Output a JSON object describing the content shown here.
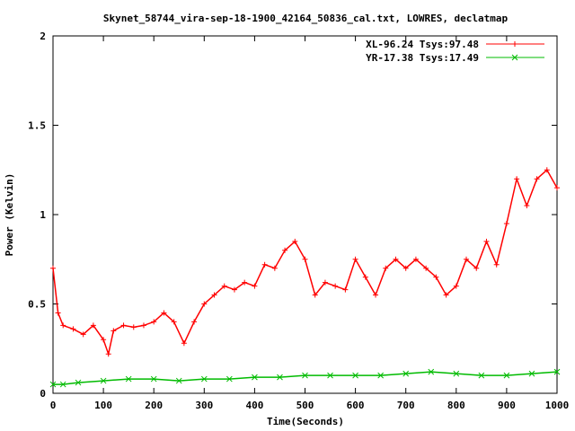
{
  "chart_data": {
    "type": "scatter",
    "title": "Skynet_58744_vira-sep-18-1900_42164_50836_cal.txt, LOWRES, declatmap",
    "xlabel": "Time(Seconds)",
    "ylabel": "Power (Kelvin)",
    "xlim": [
      0,
      1000
    ],
    "ylim": [
      0,
      2
    ],
    "xticks": [
      0,
      100,
      200,
      300,
      400,
      500,
      600,
      700,
      800,
      900,
      1000
    ],
    "yticks": [
      0,
      0.5,
      1,
      1.5,
      2
    ],
    "ytick_labels": [
      "0",
      "0.5",
      "1",
      "1.5",
      "2"
    ],
    "grid": false,
    "legend_position": "top-right",
    "series": [
      {
        "name": "XL-96.24 Tsys:97.48",
        "color": "#ff0000",
        "marker": "plus",
        "x": [
          0,
          10,
          20,
          40,
          60,
          80,
          100,
          110,
          120,
          140,
          160,
          180,
          200,
          220,
          240,
          260,
          280,
          300,
          320,
          340,
          360,
          380,
          400,
          420,
          440,
          460,
          480,
          500,
          520,
          540,
          560,
          580,
          600,
          620,
          640,
          660,
          680,
          700,
          720,
          740,
          760,
          780,
          800,
          820,
          840,
          860,
          880,
          900,
          920,
          940,
          960,
          980,
          1000
        ],
        "y": [
          0.7,
          0.45,
          0.38,
          0.36,
          0.33,
          0.38,
          0.3,
          0.22,
          0.35,
          0.38,
          0.37,
          0.38,
          0.4,
          0.45,
          0.4,
          0.28,
          0.4,
          0.5,
          0.55,
          0.6,
          0.58,
          0.62,
          0.6,
          0.72,
          0.7,
          0.8,
          0.85,
          0.75,
          0.55,
          0.62,
          0.6,
          0.58,
          0.75,
          0.65,
          0.55,
          0.7,
          0.75,
          0.7,
          0.75,
          0.7,
          0.65,
          0.55,
          0.6,
          0.75,
          0.7,
          0.85,
          0.72,
          0.95,
          1.2,
          1.05,
          1.2,
          1.25,
          1.15
        ]
      },
      {
        "name": "YR-17.38 Tsys:17.49",
        "color": "#00bb00",
        "marker": "cross",
        "x": [
          0,
          20,
          50,
          100,
          150,
          200,
          250,
          300,
          350,
          400,
          450,
          500,
          550,
          600,
          650,
          700,
          750,
          800,
          850,
          900,
          950,
          1000
        ],
        "y": [
          0.05,
          0.05,
          0.06,
          0.07,
          0.08,
          0.08,
          0.07,
          0.08,
          0.08,
          0.09,
          0.09,
          0.1,
          0.1,
          0.1,
          0.1,
          0.11,
          0.12,
          0.11,
          0.1,
          0.1,
          0.11,
          0.12
        ]
      }
    ]
  }
}
